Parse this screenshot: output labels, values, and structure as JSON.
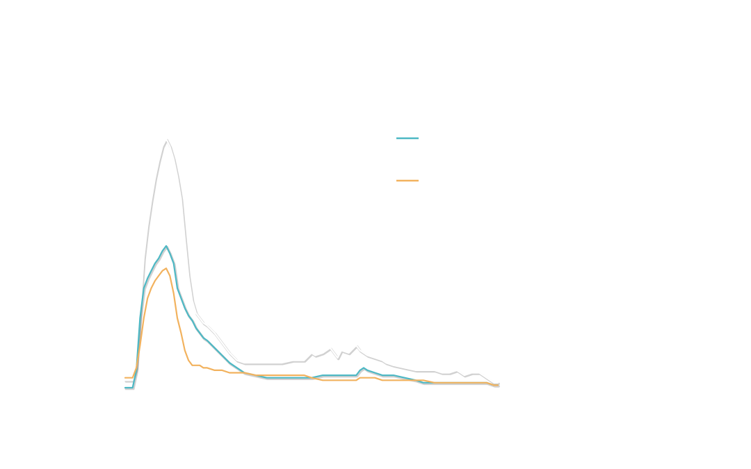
{
  "chart_data": {
    "type": "line",
    "title": "",
    "xlabel": "",
    "ylabel": "",
    "grid": false,
    "legend": "top-right",
    "xlim": [
      0,
      100
    ],
    "ylim": [
      0,
      100
    ],
    "series": [
      {
        "color": "#ffffff",
        "shadow": true,
        "x": [
          0,
          2,
          3,
          4,
          5,
          6,
          7,
          8,
          9,
          10,
          11,
          12,
          13,
          14,
          15,
          16,
          17,
          18,
          19,
          20,
          21,
          22,
          24,
          26,
          28,
          30,
          32,
          35,
          38,
          40,
          42,
          45,
          48,
          50,
          51,
          53,
          55,
          57,
          58,
          60,
          62,
          63,
          64,
          65,
          67,
          69,
          70,
          72,
          75,
          78,
          80,
          83,
          85,
          87,
          89,
          90,
          91,
          93,
          95,
          97,
          99,
          100
        ],
        "y": [
          3,
          3,
          8,
          30,
          52,
          65,
          75,
          84,
          91,
          97,
          100,
          97,
          92,
          85,
          76,
          60,
          45,
          35,
          30,
          28,
          26,
          25,
          22,
          18,
          14,
          11,
          10,
          10,
          10,
          10,
          10,
          11,
          11,
          14,
          13,
          14,
          16,
          12,
          15,
          14,
          17,
          15,
          14,
          13,
          12,
          11,
          10,
          9,
          8,
          7,
          7,
          7,
          6,
          6,
          7,
          6,
          5,
          6,
          6,
          4,
          2,
          2
        ]
      },
      {
        "color": "#4db8c4",
        "shadow": true,
        "x": [
          0,
          2,
          3,
          4,
          5,
          6,
          7,
          8,
          9,
          10,
          11,
          12,
          13,
          14,
          15,
          16,
          17,
          18,
          19,
          20,
          21,
          22,
          24,
          26,
          28,
          30,
          32,
          35,
          38,
          40,
          42,
          45,
          48,
          50,
          53,
          55,
          57,
          58,
          60,
          62,
          63,
          64,
          65,
          67,
          69,
          70,
          72,
          75,
          78,
          80,
          83,
          85,
          87,
          89,
          90,
          91,
          93,
          95,
          97,
          99,
          100
        ],
        "y": [
          0,
          0,
          7,
          28,
          40,
          44,
          47,
          50,
          52,
          55,
          57,
          54,
          50,
          40,
          36,
          32,
          29,
          27,
          24,
          22,
          20,
          19,
          16,
          13,
          10,
          8,
          6,
          5,
          4,
          4,
          4,
          4,
          4,
          4,
          5,
          5,
          5,
          5,
          5,
          5,
          7,
          8,
          7,
          6,
          5,
          5,
          5,
          4,
          3,
          2,
          2,
          2,
          2,
          2,
          2,
          2,
          2,
          2,
          2,
          1,
          1
        ]
      },
      {
        "color": "#f2b25e",
        "shadow": false,
        "x": [
          0,
          2,
          3,
          4,
          5,
          6,
          7,
          8,
          9,
          10,
          11,
          12,
          13,
          14,
          15,
          16,
          17,
          18,
          19,
          20,
          21,
          22,
          24,
          26,
          28,
          30,
          32,
          35,
          38,
          40,
          42,
          45,
          48,
          50,
          53,
          55,
          57,
          58,
          60,
          62,
          63,
          64,
          65,
          67,
          69,
          70,
          72,
          75,
          78,
          80,
          83,
          85,
          87,
          89,
          90,
          91,
          93,
          95,
          97,
          99,
          100
        ],
        "y": [
          4,
          4,
          8,
          17,
          28,
          36,
          40,
          43,
          45,
          47,
          48,
          45,
          38,
          28,
          22,
          15,
          11,
          9,
          9,
          9,
          8,
          8,
          7,
          7,
          6,
          6,
          6,
          5,
          5,
          5,
          5,
          5,
          5,
          4,
          3,
          3,
          3,
          3,
          3,
          3,
          4,
          4,
          4,
          4,
          3,
          3,
          3,
          3,
          3,
          3,
          2,
          2,
          2,
          2,
          2,
          2,
          2,
          2,
          2,
          1,
          1
        ]
      }
    ],
    "legend_items": [
      {
        "color": "#4db8c4"
      },
      {
        "color": "#f2b25e"
      }
    ]
  }
}
